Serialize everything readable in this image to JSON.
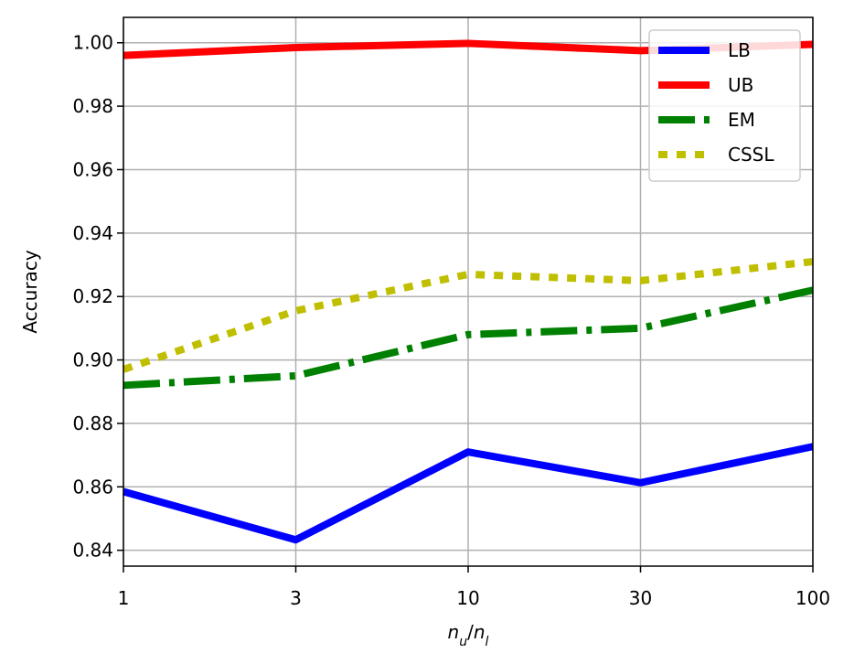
{
  "chart_data": {
    "type": "line",
    "title": "",
    "xlabel_main": "n",
    "xlabel_sub_u": "u",
    "xlabel_slash": "/",
    "xlabel_sub_l": "l",
    "ylabel": "Accuracy",
    "x_categories": [
      "1",
      "3",
      "10",
      "30",
      "100"
    ],
    "y_ticks": [
      "0.84",
      "0.86",
      "0.88",
      "0.90",
      "0.92",
      "0.94",
      "0.96",
      "0.98",
      "1.00"
    ],
    "y_tick_values": [
      0.84,
      0.86,
      0.88,
      0.9,
      0.92,
      0.94,
      0.96,
      0.98,
      1.0
    ],
    "ylim": [
      0.835,
      1.008
    ],
    "grid": true,
    "legend_position": "top-right",
    "series": [
      {
        "name": "LB",
        "color": "#0000ff",
        "style": "solid",
        "values": [
          0.8585,
          0.8433,
          0.871,
          0.8613,
          0.8727
        ]
      },
      {
        "name": "UB",
        "color": "#ff0000",
        "style": "solid",
        "values": [
          0.996,
          0.9985,
          0.9998,
          0.9975,
          0.9995
        ]
      },
      {
        "name": "EM",
        "color": "#008000",
        "style": "dashdot",
        "values": [
          0.892,
          0.895,
          0.908,
          0.91,
          0.922
        ]
      },
      {
        "name": "CSSL",
        "color": "#bfbf00",
        "style": "dotted",
        "values": [
          0.897,
          0.9155,
          0.927,
          0.925,
          0.931
        ]
      }
    ]
  }
}
